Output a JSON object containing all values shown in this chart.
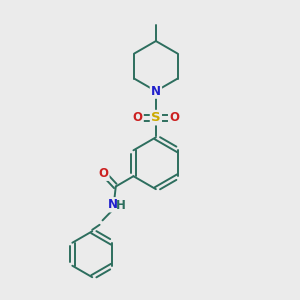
{
  "bg_color": "#ebebeb",
  "bond_color": "#2d6e5e",
  "N_color": "#2020cc",
  "S_color": "#ccaa00",
  "O_color": "#cc2020",
  "font_size": 8.5,
  "lw": 1.4,
  "xlim": [
    0,
    10
  ],
  "ylim": [
    0,
    10
  ]
}
